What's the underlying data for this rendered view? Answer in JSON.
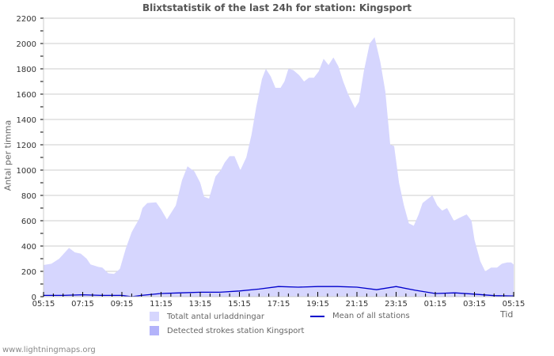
{
  "title": "Blixtstatistik of the last 24h for station: Kingsport",
  "y_axis_label": "Antal per timma",
  "x_axis_label": "Tid",
  "footer": "www.lightningmaps.org",
  "legend": [
    {
      "label": "Totalt antal urladdningar",
      "color": "#d6d6fe",
      "kind": "area"
    },
    {
      "label": "Mean of all stations",
      "color": "#0000cc",
      "kind": "line"
    },
    {
      "label": "Detected strokes station Kingsport",
      "color": "#b3b3fa",
      "kind": "area"
    }
  ],
  "chart_data": {
    "type": "area",
    "title": "Blixtstatistik of the last 24h for station: Kingsport",
    "xlabel": "Tid",
    "ylabel": "Antal per timma",
    "ylim": [
      0,
      2200
    ],
    "yticks": [
      0,
      200,
      400,
      600,
      800,
      1000,
      1200,
      1400,
      1600,
      1800,
      2000,
      2200
    ],
    "xticks": [
      "05:15",
      "07:15",
      "09:15",
      "11:15",
      "13:15",
      "15:15",
      "17:15",
      "19:15",
      "21:15",
      "23:15",
      "01:15",
      "03:15",
      "05:15"
    ],
    "grid": true,
    "legend_position": "bottom",
    "x_hours": [
      0,
      0.4,
      0.8,
      1.3,
      1.6,
      1.9,
      2.2,
      2.4,
      2.8,
      3.0,
      3.3,
      3.6,
      3.9,
      4.2,
      4.5,
      4.9,
      5.05,
      5.3,
      5.75,
      6.0,
      6.3,
      6.75,
      7.07,
      7.35,
      7.7,
      8.0,
      8.2,
      8.45,
      8.78,
      9.05,
      9.25,
      9.5,
      9.75,
      10.05,
      10.35,
      10.62,
      10.86,
      11.15,
      11.35,
      11.6,
      11.84,
      12.1,
      12.3,
      12.5,
      12.75,
      13.05,
      13.3,
      13.55,
      13.8,
      14.05,
      14.3,
      14.55,
      14.8,
      15.05,
      15.3,
      15.55,
      15.9,
      16.1,
      16.35,
      16.65,
      16.9,
      17.2,
      17.45,
      17.7,
      17.9,
      18.15,
      18.4,
      18.65,
      18.9,
      19.15,
      19.35,
      19.6,
      19.85,
      20.1,
      20.35,
      20.6,
      20.95,
      21.2,
      21.6,
      21.85,
      22.0,
      22.3,
      22.55,
      22.85,
      23.15,
      23.4,
      23.67,
      23.87,
      24.0
    ],
    "series": [
      {
        "name": "Totalt antal urladdningar",
        "color": "#d6d6fe",
        "values": [
          250,
          260,
          300,
          385,
          350,
          340,
          300,
          255,
          235,
          230,
          185,
          180,
          220,
          380,
          510,
          620,
          700,
          740,
          745,
          690,
          610,
          720,
          920,
          1030,
          990,
          900,
          790,
          775,
          950,
          1000,
          1060,
          1110,
          1110,
          1000,
          1100,
          1280,
          1500,
          1720,
          1800,
          1740,
          1650,
          1650,
          1700,
          1800,
          1790,
          1750,
          1700,
          1730,
          1730,
          1780,
          1880,
          1830,
          1890,
          1820,
          1700,
          1600,
          1490,
          1540,
          1780,
          2000,
          2050,
          1850,
          1620,
          1200,
          1190,
          900,
          720,
          580,
          560,
          650,
          740,
          770,
          800,
          720,
          680,
          700,
          600,
          620,
          650,
          600,
          450,
          280,
          200,
          230,
          230,
          260,
          270,
          270,
          255
        ]
      },
      {
        "name": "Detected strokes station Kingsport",
        "color": "#b3b3fa",
        "values": []
      },
      {
        "name": "Mean of all stations",
        "color": "#0000cc",
        "x_hours": [
          0,
          1,
          2,
          3,
          4,
          4.5,
          5,
          6,
          7,
          8,
          9,
          10,
          11,
          12,
          13,
          14,
          15,
          16,
          17,
          18,
          19,
          20,
          21,
          22,
          23,
          24
        ],
        "values": [
          10,
          10,
          15,
          10,
          10,
          0,
          10,
          25,
          30,
          35,
          35,
          45,
          60,
          80,
          75,
          80,
          80,
          75,
          55,
          80,
          50,
          25,
          30,
          20,
          8,
          5
        ]
      }
    ]
  }
}
